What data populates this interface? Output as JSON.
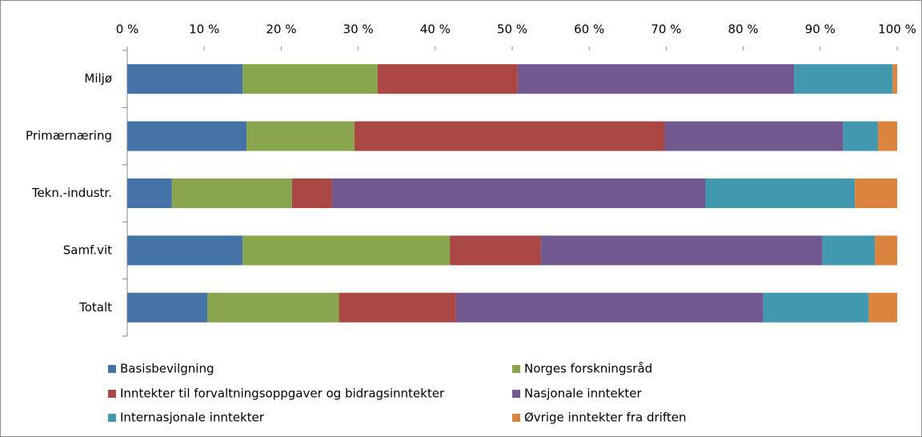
{
  "chart_data": {
    "type": "stacked-bar-horizontal",
    "categories": [
      "Miljø",
      "Primærnæring",
      "Tekn.-industr.",
      "Samf.vit",
      "Totalt"
    ],
    "series": [
      {
        "name": "Basisbevilgning",
        "color": "#4572a7",
        "values": [
          15.0,
          15.5,
          5.8,
          15.0,
          10.4
        ]
      },
      {
        "name": "Norges forskningsråd",
        "color": "#89a54e",
        "values": [
          17.5,
          14.0,
          15.6,
          26.9,
          17.1
        ]
      },
      {
        "name": "Inntekter til forvaltningsoppgaver og bidragsinntekter",
        "color": "#aa4643",
        "values": [
          18.2,
          40.3,
          5.2,
          11.8,
          15.2
        ]
      },
      {
        "name": "Nasjonale inntekter",
        "color": "#71588f",
        "values": [
          35.9,
          23.2,
          48.5,
          36.6,
          39.9
        ]
      },
      {
        "name": "Internasjonale inntekter",
        "color": "#4198af",
        "values": [
          12.8,
          4.5,
          19.4,
          6.8,
          13.7
        ]
      },
      {
        "name": "Øvrige inntekter fra driften",
        "color": "#db843d",
        "values": [
          0.6,
          2.5,
          5.5,
          2.9,
          3.7
        ]
      }
    ],
    "xlim": [
      0,
      100
    ],
    "xticks": [
      {
        "value": 0,
        "label": "0 %"
      },
      {
        "value": 10,
        "label": "10 %"
      },
      {
        "value": 20,
        "label": "20 %"
      },
      {
        "value": 30,
        "label": "30 %"
      },
      {
        "value": 40,
        "label": "40 %"
      },
      {
        "value": 50,
        "label": "50 %"
      },
      {
        "value": 60,
        "label": "60 %"
      },
      {
        "value": 70,
        "label": "70 %"
      },
      {
        "value": 80,
        "label": "80 %"
      },
      {
        "value": 90,
        "label": "90 %"
      },
      {
        "value": 100,
        "label": "100 %"
      }
    ],
    "grid": false
  }
}
